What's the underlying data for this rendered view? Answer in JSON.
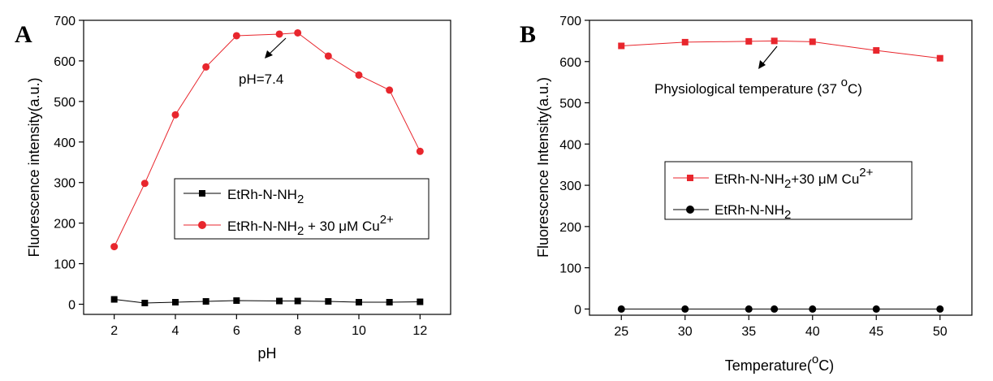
{
  "panels": [
    {
      "letter": "A",
      "xlabel": "pH",
      "ylabel": "Fluorescence intensity(a.u.)",
      "annotation": "pH=7.4"
    },
    {
      "letter": "B",
      "xlabel": "Temperature(",
      "xlabel_sup": "o",
      "xlabel_end": "C)",
      "ylabel": "Fluorescence Intensity(a.u.)",
      "annotation": "Physiological temperature (37 ",
      "annotation_sup": "o",
      "annotation_end": "C)"
    }
  ],
  "colors": {
    "red": "#e8262d",
    "black": "#000000"
  },
  "chart_data": [
    {
      "type": "line",
      "xlabel": "pH",
      "ylabel": "Fluorescence intensity(a.u.)",
      "xlim": [
        1,
        13
      ],
      "ylim": [
        -25,
        700
      ],
      "xticks": [
        2,
        4,
        6,
        8,
        10,
        12
      ],
      "yticks": [
        0,
        100,
        200,
        300,
        400,
        500,
        600,
        700
      ],
      "legend": "center",
      "series": [
        {
          "name": "EtRh-N-NH",
          "name_sub": "2",
          "name_end": "",
          "name_sup": "",
          "color": "#000000",
          "marker": "square",
          "x": [
            2,
            3,
            4,
            5,
            6,
            7.4,
            8,
            9,
            10,
            11,
            12
          ],
          "values": [
            12,
            3,
            5,
            7,
            9,
            8,
            8,
            7,
            5,
            5,
            6
          ]
        },
        {
          "name": "EtRh-N-NH",
          "name_sub": "2",
          "name_end": " + 30 μM Cu",
          "name_sup": "2+",
          "color": "#e8262d",
          "marker": "circle",
          "x": [
            2,
            3,
            4,
            5,
            6,
            7.4,
            8,
            9,
            10,
            11,
            12
          ],
          "values": [
            142,
            298,
            467,
            585,
            662,
            666,
            669,
            612,
            565,
            528,
            377
          ]
        }
      ],
      "annotation": {
        "text": "pH=7.4",
        "points_to_x": 7.4
      }
    },
    {
      "type": "line",
      "xlabel": "Temperature(oC)",
      "ylabel": "Fluorescence Intensity(a.u.)",
      "xlim": [
        22.5,
        52.5
      ],
      "ylim": [
        -15,
        700
      ],
      "xticks": [
        25,
        30,
        35,
        40,
        45,
        50
      ],
      "yticks": [
        0,
        100,
        200,
        300,
        400,
        500,
        600,
        700
      ],
      "legend": "center-left",
      "series": [
        {
          "name": "EtRh-N-NH",
          "name_sub": "2",
          "name_end": "+30 μM Cu",
          "name_sup": "2+",
          "color": "#e8262d",
          "marker": "square",
          "x": [
            25,
            30,
            35,
            37,
            40,
            45,
            50
          ],
          "values": [
            638,
            647,
            649,
            650,
            648,
            627,
            608
          ]
        },
        {
          "name": "EtRh-N-NH",
          "name_sub": "2",
          "name_end": "",
          "name_sup": "",
          "color": "#000000",
          "marker": "circle",
          "x": [
            25,
            30,
            35,
            37,
            40,
            45,
            50
          ],
          "values": [
            0,
            0,
            0,
            0,
            0,
            0,
            0
          ]
        }
      ],
      "annotation": {
        "text": "Physiological temperature (37 oC)",
        "points_to_x": 37
      }
    }
  ]
}
